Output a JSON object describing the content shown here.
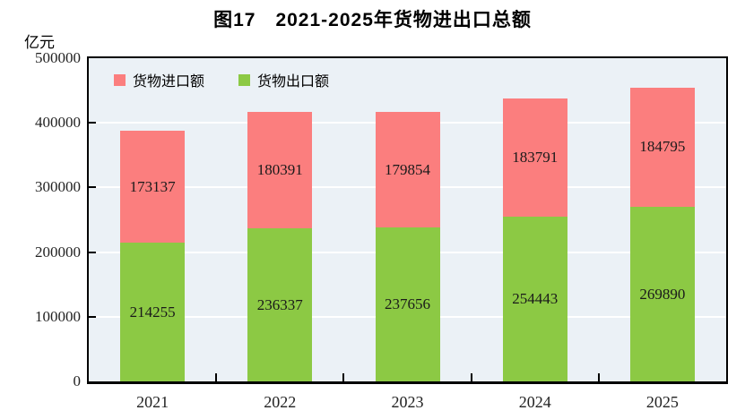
{
  "title": "图17　2021-2025年货物进出口总额",
  "unit_label": "亿元",
  "legend": [
    {
      "label": "货物进口额",
      "color": "#fb7e7e"
    },
    {
      "label": "货物出口额",
      "color": "#8cc944"
    }
  ],
  "colors": {
    "import_bar": "#fb7e7e",
    "export_bar": "#8cc944",
    "plot_background": "#ebf1f6",
    "gridline": "#ffffff",
    "axis": "#000000"
  },
  "chart_data": {
    "type": "bar",
    "stacked": true,
    "title": "图17　2021-2025年货物进出口总额",
    "ylabel": "亿元",
    "xlabel": "",
    "categories": [
      "2021",
      "2022",
      "2023",
      "2024",
      "2025"
    ],
    "series": [
      {
        "name": "货物出口额",
        "color": "#8cc944",
        "values": [
          214255,
          236337,
          237656,
          254443,
          269890
        ]
      },
      {
        "name": "货物进口额",
        "color": "#fb7e7e",
        "values": [
          173137,
          180391,
          179854,
          183791,
          184795
        ]
      }
    ],
    "ylim": [
      0,
      500000
    ],
    "yticks": [
      0,
      100000,
      200000,
      300000,
      400000,
      500000
    ],
    "grid": true,
    "gridlines_behind_bars": true,
    "legend_position": "top-left-inside"
  }
}
